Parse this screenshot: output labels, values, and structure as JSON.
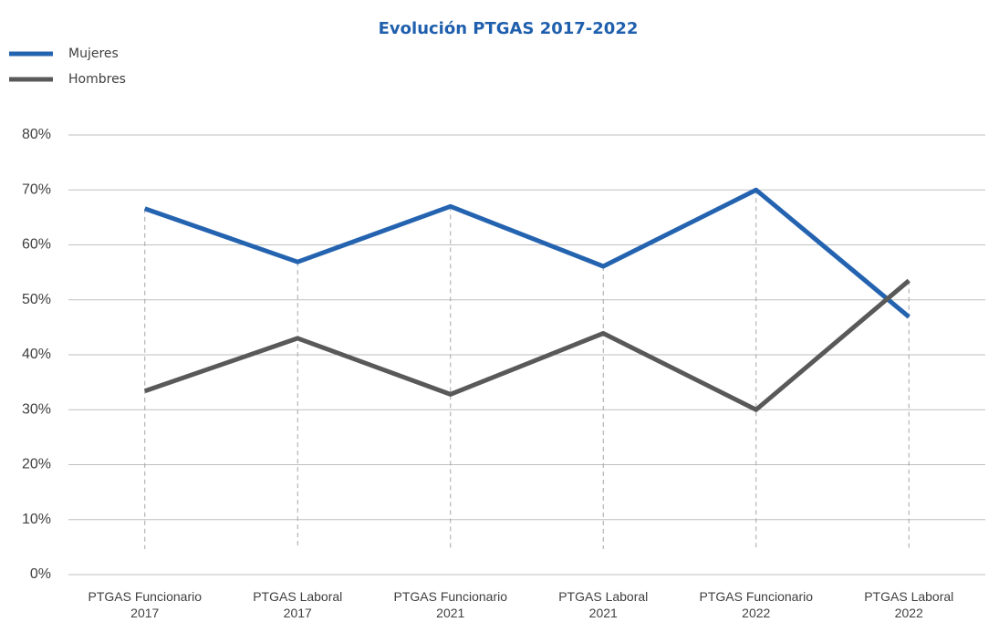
{
  "chart_data": {
    "type": "line",
    "title": "Evolución PTGAS 2017-2022",
    "categories": [
      "PTGAS Funcionario 2017",
      "PTGAS Laboral 2017",
      "PTGAS Funcionario 2021",
      "PTGAS Laboral 2021",
      "PTGAS Funcionario 2022",
      "PTGAS Laboral 2022"
    ],
    "series": [
      {
        "name": "Mujeres",
        "color": "#2463b0",
        "values": [
          66.6,
          56.9,
          67.0,
          56.1,
          70.0,
          46.9
        ]
      },
      {
        "name": "Hombres",
        "color": "#595959",
        "values": [
          33.4,
          43.0,
          32.8,
          43.9,
          30.0,
          53.5
        ]
      }
    ],
    "ylim": [
      0,
      80
    ],
    "yticks": [
      {
        "value": 0,
        "label": "0%"
      },
      {
        "value": 10,
        "label": "10%"
      },
      {
        "value": 20,
        "label": "20%"
      },
      {
        "value": 30,
        "label": "30%"
      },
      {
        "value": 40,
        "label": "40%"
      },
      {
        "value": 50,
        "label": "50%"
      },
      {
        "value": 60,
        "label": "60%"
      },
      {
        "value": 70,
        "label": "70%"
      },
      {
        "value": 80,
        "label": "80%"
      }
    ],
    "grid": true,
    "legend": "top-left"
  }
}
